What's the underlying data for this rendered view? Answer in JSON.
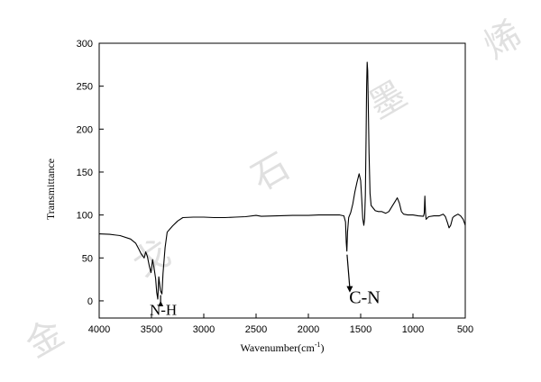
{
  "chart_data": {
    "type": "line",
    "title": "",
    "xlabel": "Wavenumber(cm",
    "xlabel_sup": "-1",
    "xlabel_suffix": ")",
    "ylabel": "Transmittance",
    "xlim": [
      4000,
      500
    ],
    "ylim": [
      -20,
      300
    ],
    "x_reversed": true,
    "grid": false,
    "x_ticks": [
      4000,
      3500,
      3000,
      2500,
      2000,
      1500,
      1000,
      500
    ],
    "y_ticks": [
      0,
      50,
      100,
      150,
      200,
      250,
      300
    ],
    "series": [
      {
        "points": [
          [
            4000,
            78
          ],
          [
            3900,
            77.5
          ],
          [
            3800,
            76
          ],
          [
            3700,
            72
          ],
          [
            3650,
            67
          ],
          [
            3620,
            60
          ],
          [
            3600,
            55
          ],
          [
            3570,
            50
          ],
          [
            3555,
            57
          ],
          [
            3540,
            52
          ],
          [
            3520,
            40
          ],
          [
            3505,
            33
          ],
          [
            3490,
            48
          ],
          [
            3475,
            38
          ],
          [
            3460,
            26
          ],
          [
            3450,
            10
          ],
          [
            3440,
            2
          ],
          [
            3430,
            28
          ],
          [
            3415,
            12
          ],
          [
            3400,
            8
          ],
          [
            3390,
            32
          ],
          [
            3370,
            62
          ],
          [
            3350,
            80
          ],
          [
            3300,
            87
          ],
          [
            3250,
            93
          ],
          [
            3200,
            97
          ],
          [
            3100,
            97.5
          ],
          [
            3000,
            97.5
          ],
          [
            2900,
            97
          ],
          [
            2800,
            97
          ],
          [
            2700,
            97.5
          ],
          [
            2600,
            98
          ],
          [
            2500,
            99.5
          ],
          [
            2450,
            98.5
          ],
          [
            2300,
            99
          ],
          [
            2150,
            99.5
          ],
          [
            2000,
            99.5
          ],
          [
            1900,
            100
          ],
          [
            1800,
            100
          ],
          [
            1700,
            100
          ],
          [
            1660,
            99
          ],
          [
            1645,
            92
          ],
          [
            1638,
            68
          ],
          [
            1632,
            58
          ],
          [
            1626,
            80
          ],
          [
            1615,
            97
          ],
          [
            1595,
            103
          ],
          [
            1575,
            113
          ],
          [
            1555,
            127
          ],
          [
            1535,
            138
          ],
          [
            1515,
            148
          ],
          [
            1500,
            140
          ],
          [
            1490,
            118
          ],
          [
            1480,
            96
          ],
          [
            1470,
            88
          ],
          [
            1462,
            96
          ],
          [
            1455,
            123
          ],
          [
            1448,
            190
          ],
          [
            1443,
            250
          ],
          [
            1438,
            278
          ],
          [
            1433,
            268
          ],
          [
            1428,
            230
          ],
          [
            1420,
            172
          ],
          [
            1410,
            125
          ],
          [
            1400,
            111
          ],
          [
            1380,
            108
          ],
          [
            1360,
            105
          ],
          [
            1330,
            104
          ],
          [
            1300,
            104
          ],
          [
            1260,
            102
          ],
          [
            1230,
            104
          ],
          [
            1200,
            110
          ],
          [
            1170,
            116
          ],
          [
            1150,
            120
          ],
          [
            1130,
            114
          ],
          [
            1110,
            104
          ],
          [
            1090,
            101
          ],
          [
            1050,
            100
          ],
          [
            1000,
            100
          ],
          [
            950,
            99
          ],
          [
            900,
            98.5
          ],
          [
            892,
            102
          ],
          [
            886,
            122
          ],
          [
            880,
            103
          ],
          [
            874,
            95
          ],
          [
            850,
            98
          ],
          [
            800,
            99
          ],
          [
            750,
            99
          ],
          [
            710,
            101
          ],
          [
            690,
            98
          ],
          [
            670,
            91
          ],
          [
            655,
            85
          ],
          [
            640,
            88
          ],
          [
            620,
            97
          ],
          [
            600,
            99
          ],
          [
            570,
            101
          ],
          [
            545,
            99
          ],
          [
            520,
            95
          ],
          [
            500,
            88
          ]
        ]
      }
    ],
    "annotations": [
      {
        "text": "N-H",
        "x": 3430,
        "y": 2,
        "label_x": 3370,
        "label_y": -8
      },
      {
        "text": "C-N",
        "x": 1630,
        "y": 58,
        "label_x": 1530,
        "label_y": 12
      }
    ]
  },
  "watermark": [
    "金",
    "戈",
    "石",
    "墨",
    "烯"
  ],
  "colors": {
    "line": "#000000",
    "axis": "#000000",
    "watermark": "#c8c8c8"
  }
}
